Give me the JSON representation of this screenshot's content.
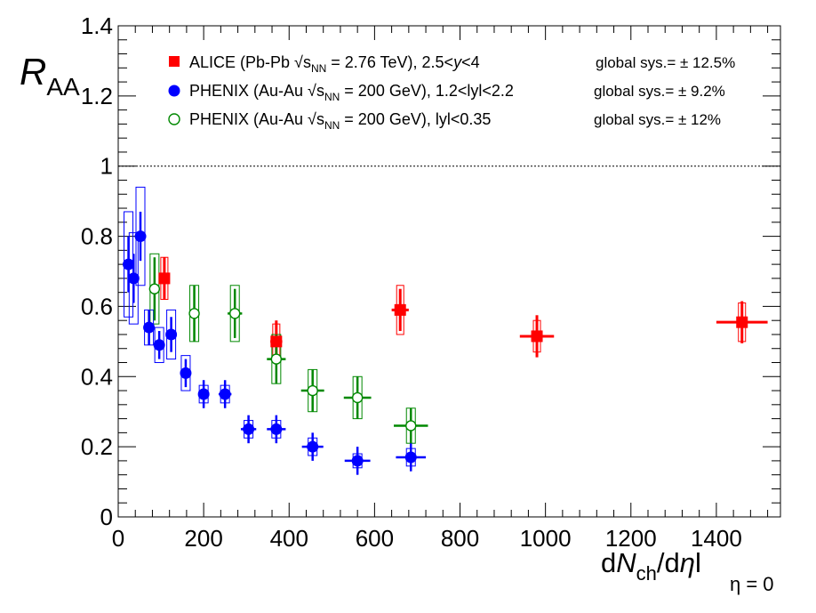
{
  "chart_data": {
    "type": "scatter",
    "title": "",
    "xlabel": {
      "d1": "d",
      "N": "N",
      "ch": "ch",
      "slash": "/d",
      "eta": "η",
      "bar": "l",
      "sub": "η = 0"
    },
    "ylabel": {
      "main": "R",
      "sub": "AA"
    },
    "xlim": [
      0,
      1550
    ],
    "ylim": [
      0,
      1.4
    ],
    "x_ticks": [
      0,
      200,
      400,
      600,
      800,
      1000,
      1200,
      1400
    ],
    "y_ticks": [
      0,
      0.2,
      0.4,
      0.6,
      0.8,
      1,
      1.2,
      1.4
    ],
    "x_tick_labels": [
      "0",
      "200",
      "400",
      "600",
      "800",
      "1000",
      "1200",
      "1400"
    ],
    "y_tick_labels": [
      "0",
      "0.2",
      "0.4",
      "0.6",
      "0.8",
      "1",
      "1.2",
      "1.4"
    ],
    "reference_line": 1.0,
    "grid": false,
    "legend_position": "top",
    "colors": {
      "alice": "#ff0000",
      "phenix_fwd": "#0000ff",
      "phenix_mid": "#008800"
    },
    "series": [
      {
        "name": "ALICE (Pb-Pb √sNN = 2.76 TeV), 2.5<y<4",
        "label": {
          "pre": "ALICE (Pb-Pb ",
          "s": "s",
          "nn": "NN",
          "post": " = 2.76 TeV), 2.5<",
          "y": "y",
          "end": "<4"
        },
        "global_sys": "global sys.= ± 12.5%",
        "marker": "square",
        "color": "#ff0000",
        "points": [
          {
            "x": 108,
            "y": 0.68,
            "xerr": 10,
            "stat": 0.06,
            "sys": 0.06
          },
          {
            "x": 370,
            "y": 0.5,
            "xerr": 14,
            "stat": 0.06,
            "sys": 0.05
          },
          {
            "x": 660,
            "y": 0.59,
            "xerr": 20,
            "stat": 0.06,
            "sys": 0.07
          },
          {
            "x": 980,
            "y": 0.515,
            "xerr": 40,
            "stat": 0.06,
            "sys": 0.045
          },
          {
            "x": 1460,
            "y": 0.555,
            "xerr": 60,
            "stat": 0.06,
            "sys": 0.055
          }
        ]
      },
      {
        "name": "PHENIX (Au-Au √sNN = 200 GeV), 1.2<lyl<2.2",
        "label": {
          "pre": "PHENIX (Au-Au ",
          "s": "s",
          "nn": "NN",
          "post": " = 200 GeV), 1.2<lyl<2.2"
        },
        "global_sys": "global sys.= ± 9.2%",
        "marker": "circle",
        "color": "#0000ff",
        "points": [
          {
            "x": 24,
            "y": 0.72,
            "xerr": 3,
            "stat": 0.08,
            "sys": 0.15
          },
          {
            "x": 36,
            "y": 0.68,
            "xerr": 3,
            "stat": 0.07,
            "sys": 0.13
          },
          {
            "x": 52,
            "y": 0.8,
            "xerr": 4,
            "stat": 0.07,
            "sys": 0.14
          },
          {
            "x": 72,
            "y": 0.54,
            "xerr": 5,
            "stat": 0.05,
            "sys": 0.05
          },
          {
            "x": 96,
            "y": 0.49,
            "xerr": 6,
            "stat": 0.04,
            "sys": 0.05
          },
          {
            "x": 124,
            "y": 0.52,
            "xerr": 8,
            "stat": 0.05,
            "sys": 0.07
          },
          {
            "x": 158,
            "y": 0.41,
            "xerr": 10,
            "stat": 0.04,
            "sys": 0.05
          },
          {
            "x": 200,
            "y": 0.35,
            "xerr": 12,
            "stat": 0.04,
            "sys": 0.025
          },
          {
            "x": 250,
            "y": 0.35,
            "xerr": 15,
            "stat": 0.04,
            "sys": 0.025
          },
          {
            "x": 305,
            "y": 0.25,
            "xerr": 18,
            "stat": 0.04,
            "sys": 0.025
          },
          {
            "x": 370,
            "y": 0.25,
            "xerr": 22,
            "stat": 0.04,
            "sys": 0.025
          },
          {
            "x": 455,
            "y": 0.2,
            "xerr": 25,
            "stat": 0.04,
            "sys": 0.025
          },
          {
            "x": 560,
            "y": 0.16,
            "xerr": 30,
            "stat": 0.04,
            "sys": 0.02
          },
          {
            "x": 685,
            "y": 0.17,
            "xerr": 35,
            "stat": 0.04,
            "sys": 0.025
          }
        ]
      },
      {
        "name": "PHENIX (Au-Au √sNN = 200 GeV), lyl<0.35",
        "label": {
          "pre": "PHENIX (Au-Au ",
          "s": "s",
          "nn": "NN",
          "post": " = 200 GeV), lyl<0.35"
        },
        "global_sys": "global sys.= ± 12%",
        "marker": "open-circle",
        "color": "#008800",
        "points": [
          {
            "x": 85,
            "y": 0.65,
            "xerr": 6,
            "stat": 0.09,
            "sys": 0.1
          },
          {
            "x": 178,
            "y": 0.58,
            "xerr": 12,
            "stat": 0.08,
            "sys": 0.08
          },
          {
            "x": 273,
            "y": 0.58,
            "xerr": 17,
            "stat": 0.07,
            "sys": 0.08
          },
          {
            "x": 370,
            "y": 0.45,
            "xerr": 22,
            "stat": 0.07,
            "sys": 0.07
          },
          {
            "x": 455,
            "y": 0.36,
            "xerr": 27,
            "stat": 0.06,
            "sys": 0.06
          },
          {
            "x": 560,
            "y": 0.34,
            "xerr": 32,
            "stat": 0.06,
            "sys": 0.06
          },
          {
            "x": 685,
            "y": 0.26,
            "xerr": 40,
            "stat": 0.05,
            "sys": 0.05
          }
        ]
      }
    ]
  }
}
